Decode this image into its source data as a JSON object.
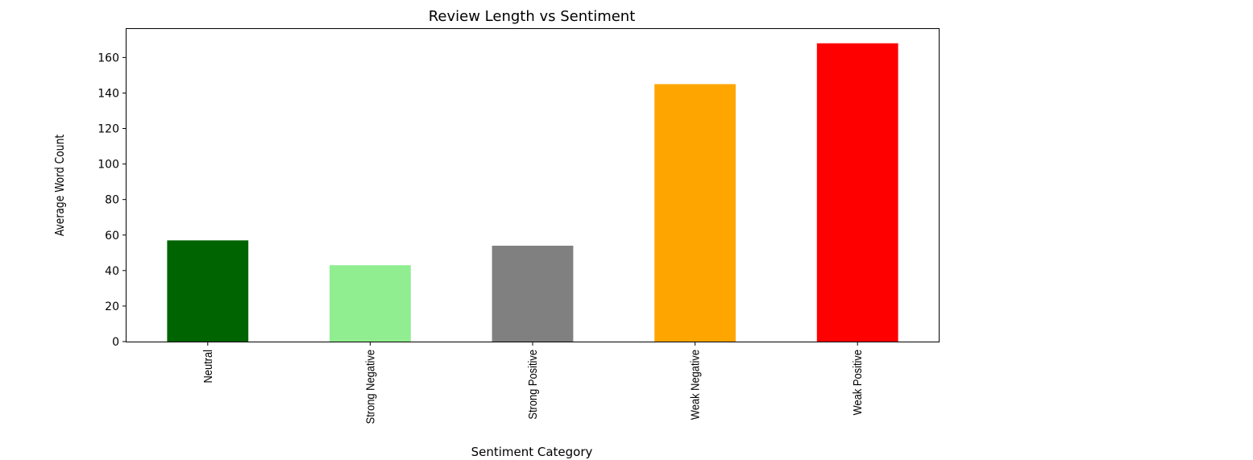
{
  "chart_data": {
    "type": "bar",
    "title": "Review Length vs Sentiment",
    "xlabel": "Sentiment Category",
    "ylabel": "Average Word Count",
    "categories": [
      "Neutral",
      "Strong Negative",
      "Strong Positive",
      "Weak Negative",
      "Weak Positive"
    ],
    "values": [
      57,
      43,
      54,
      145,
      168
    ],
    "colors": [
      "#006400",
      "#90ee90",
      "#808080",
      "#ffa500",
      "#ff0000"
    ],
    "ylim": [
      0,
      176.5
    ],
    "yticks": [
      0,
      20,
      40,
      60,
      80,
      100,
      120,
      140,
      160
    ],
    "grid": false,
    "legend": "none"
  }
}
